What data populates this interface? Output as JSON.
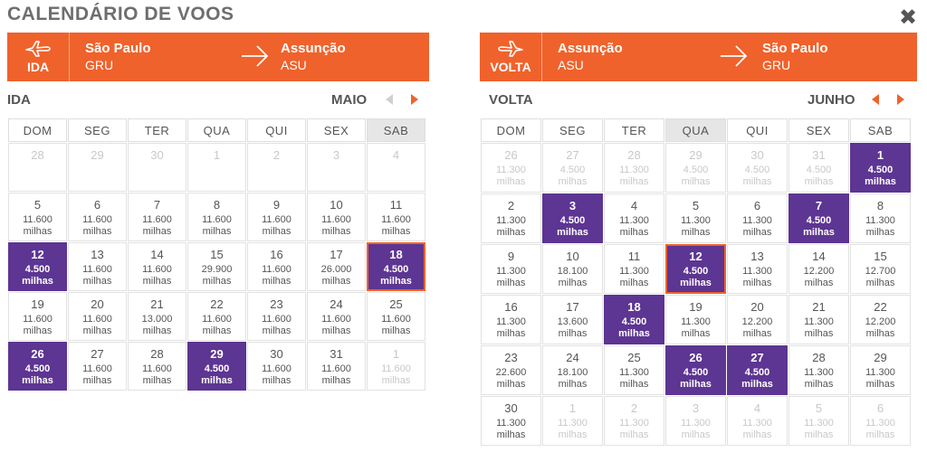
{
  "title": "CALENDÁRIO DE VOOS",
  "colors": {
    "accent": "#f0622b",
    "cheap": "#5d3592"
  },
  "ida": {
    "banner": {
      "label": "IDA",
      "origin_city": "São Paulo",
      "origin_code": "GRU",
      "dest_city": "Assunção",
      "dest_code": "ASU"
    },
    "side_label": "IDA",
    "month": "MAIO",
    "weekdays": [
      "DOM",
      "SEG",
      "TER",
      "QUA",
      "QUI",
      "SEX",
      "SAB"
    ],
    "highlight_col": 6,
    "weeks": [
      [
        {
          "day": "28",
          "state": "other"
        },
        {
          "day": "29",
          "state": "other"
        },
        {
          "day": "30",
          "state": "other"
        },
        {
          "day": "1",
          "state": "other"
        },
        {
          "day": "2",
          "state": "other"
        },
        {
          "day": "3",
          "state": "other"
        },
        {
          "day": "4",
          "state": "other"
        }
      ],
      [
        {
          "day": "5",
          "price": "11.600",
          "unit": "milhas",
          "state": "avail"
        },
        {
          "day": "6",
          "price": "11.600",
          "unit": "milhas",
          "state": "avail"
        },
        {
          "day": "7",
          "price": "11.600",
          "unit": "milhas",
          "state": "avail"
        },
        {
          "day": "8",
          "price": "11.600",
          "unit": "milhas",
          "state": "avail"
        },
        {
          "day": "9",
          "price": "11.600",
          "unit": "milhas",
          "state": "avail"
        },
        {
          "day": "10",
          "price": "11.600",
          "unit": "milhas",
          "state": "avail"
        },
        {
          "day": "11",
          "price": "11.600",
          "unit": "milhas",
          "state": "avail"
        }
      ],
      [
        {
          "day": "12",
          "price": "4.500",
          "unit": "milhas",
          "state": "cheap"
        },
        {
          "day": "13",
          "price": "11.600",
          "unit": "milhas",
          "state": "avail"
        },
        {
          "day": "14",
          "price": "11.600",
          "unit": "milhas",
          "state": "avail"
        },
        {
          "day": "15",
          "price": "29.900",
          "unit": "milhas",
          "state": "avail"
        },
        {
          "day": "16",
          "price": "11.600",
          "unit": "milhas",
          "state": "avail"
        },
        {
          "day": "17",
          "price": "26.000",
          "unit": "milhas",
          "state": "avail"
        },
        {
          "day": "18",
          "price": "4.500",
          "unit": "milhas",
          "state": "cheap",
          "selected": true
        }
      ],
      [
        {
          "day": "19",
          "price": "11.600",
          "unit": "milhas",
          "state": "avail"
        },
        {
          "day": "20",
          "price": "11.600",
          "unit": "milhas",
          "state": "avail"
        },
        {
          "day": "21",
          "price": "13.000",
          "unit": "milhas",
          "state": "avail"
        },
        {
          "day": "22",
          "price": "11.600",
          "unit": "milhas",
          "state": "avail"
        },
        {
          "day": "23",
          "price": "11.600",
          "unit": "milhas",
          "state": "avail"
        },
        {
          "day": "24",
          "price": "11.600",
          "unit": "milhas",
          "state": "avail"
        },
        {
          "day": "25",
          "price": "11.600",
          "unit": "milhas",
          "state": "avail"
        }
      ],
      [
        {
          "day": "26",
          "price": "4.500",
          "unit": "milhas",
          "state": "cheap"
        },
        {
          "day": "27",
          "price": "11.600",
          "unit": "milhas",
          "state": "avail"
        },
        {
          "day": "28",
          "price": "11.600",
          "unit": "milhas",
          "state": "avail"
        },
        {
          "day": "29",
          "price": "4.500",
          "unit": "milhas",
          "state": "cheap"
        },
        {
          "day": "30",
          "price": "11.600",
          "unit": "milhas",
          "state": "avail"
        },
        {
          "day": "31",
          "price": "11.600",
          "unit": "milhas",
          "state": "avail"
        },
        {
          "day": "1",
          "price": "11.600",
          "unit": "milhas",
          "state": "other"
        }
      ]
    ]
  },
  "volta": {
    "banner": {
      "label": "VOLTA",
      "origin_city": "Assunção",
      "origin_code": "ASU",
      "dest_city": "São Paulo",
      "dest_code": "GRU"
    },
    "side_label": "VOLTA",
    "month": "JUNHO",
    "weekdays": [
      "DOM",
      "SEG",
      "TER",
      "QUA",
      "QUI",
      "SEX",
      "SAB"
    ],
    "highlight_col": 3,
    "weeks": [
      [
        {
          "day": "26",
          "price": "11.300",
          "unit": "milhas",
          "state": "other"
        },
        {
          "day": "27",
          "price": "4.500",
          "unit": "milhas",
          "state": "other"
        },
        {
          "day": "28",
          "price": "11.300",
          "unit": "milhas",
          "state": "other"
        },
        {
          "day": "29",
          "price": "4.500",
          "unit": "milhas",
          "state": "other"
        },
        {
          "day": "30",
          "price": "4.500",
          "unit": "milhas",
          "state": "other"
        },
        {
          "day": "31",
          "price": "4.500",
          "unit": "milhas",
          "state": "other"
        },
        {
          "day": "1",
          "price": "4.500",
          "unit": "milhas",
          "state": "cheap"
        }
      ],
      [
        {
          "day": "2",
          "price": "11.300",
          "unit": "milhas",
          "state": "avail"
        },
        {
          "day": "3",
          "price": "4.500",
          "unit": "milhas",
          "state": "cheap"
        },
        {
          "day": "4",
          "price": "11.300",
          "unit": "milhas",
          "state": "avail"
        },
        {
          "day": "5",
          "price": "11.300",
          "unit": "milhas",
          "state": "avail"
        },
        {
          "day": "6",
          "price": "11.300",
          "unit": "milhas",
          "state": "avail"
        },
        {
          "day": "7",
          "price": "4.500",
          "unit": "milhas",
          "state": "cheap"
        },
        {
          "day": "8",
          "price": "11.300",
          "unit": "milhas",
          "state": "avail"
        }
      ],
      [
        {
          "day": "9",
          "price": "11.300",
          "unit": "milhas",
          "state": "avail"
        },
        {
          "day": "10",
          "price": "18.100",
          "unit": "milhas",
          "state": "avail"
        },
        {
          "day": "11",
          "price": "11.300",
          "unit": "milhas",
          "state": "avail"
        },
        {
          "day": "12",
          "price": "4.500",
          "unit": "milhas",
          "state": "cheap",
          "selected": true
        },
        {
          "day": "13",
          "price": "11.300",
          "unit": "milhas",
          "state": "avail"
        },
        {
          "day": "14",
          "price": "12.200",
          "unit": "milhas",
          "state": "avail"
        },
        {
          "day": "15",
          "price": "12.700",
          "unit": "milhas",
          "state": "avail"
        }
      ],
      [
        {
          "day": "16",
          "price": "11.300",
          "unit": "milhas",
          "state": "avail"
        },
        {
          "day": "17",
          "price": "13.600",
          "unit": "milhas",
          "state": "avail"
        },
        {
          "day": "18",
          "price": "4.500",
          "unit": "milhas",
          "state": "cheap"
        },
        {
          "day": "19",
          "price": "11.300",
          "unit": "milhas",
          "state": "avail"
        },
        {
          "day": "20",
          "price": "12.200",
          "unit": "milhas",
          "state": "avail"
        },
        {
          "day": "21",
          "price": "11.300",
          "unit": "milhas",
          "state": "avail"
        },
        {
          "day": "22",
          "price": "12.200",
          "unit": "milhas",
          "state": "avail"
        }
      ],
      [
        {
          "day": "23",
          "price": "22.600",
          "unit": "milhas",
          "state": "avail"
        },
        {
          "day": "24",
          "price": "18.100",
          "unit": "milhas",
          "state": "avail"
        },
        {
          "day": "25",
          "price": "11.300",
          "unit": "milhas",
          "state": "avail"
        },
        {
          "day": "26",
          "price": "4.500",
          "unit": "milhas",
          "state": "cheap"
        },
        {
          "day": "27",
          "price": "4.500",
          "unit": "milhas",
          "state": "cheap"
        },
        {
          "day": "28",
          "price": "11.300",
          "unit": "milhas",
          "state": "avail"
        },
        {
          "day": "29",
          "price": "11.300",
          "unit": "milhas",
          "state": "avail"
        }
      ],
      [
        {
          "day": "30",
          "price": "11.300",
          "unit": "milhas",
          "state": "avail"
        },
        {
          "day": "1",
          "price": "11.300",
          "unit": "milhas",
          "state": "other"
        },
        {
          "day": "2",
          "price": "11.300",
          "unit": "milhas",
          "state": "other"
        },
        {
          "day": "3",
          "price": "11.300",
          "unit": "milhas",
          "state": "other"
        },
        {
          "day": "4",
          "price": "11.300",
          "unit": "milhas",
          "state": "other"
        },
        {
          "day": "5",
          "price": "11.300",
          "unit": "milhas",
          "state": "other"
        },
        {
          "day": "6",
          "price": "11.300",
          "unit": "milhas",
          "state": "other"
        }
      ]
    ]
  }
}
